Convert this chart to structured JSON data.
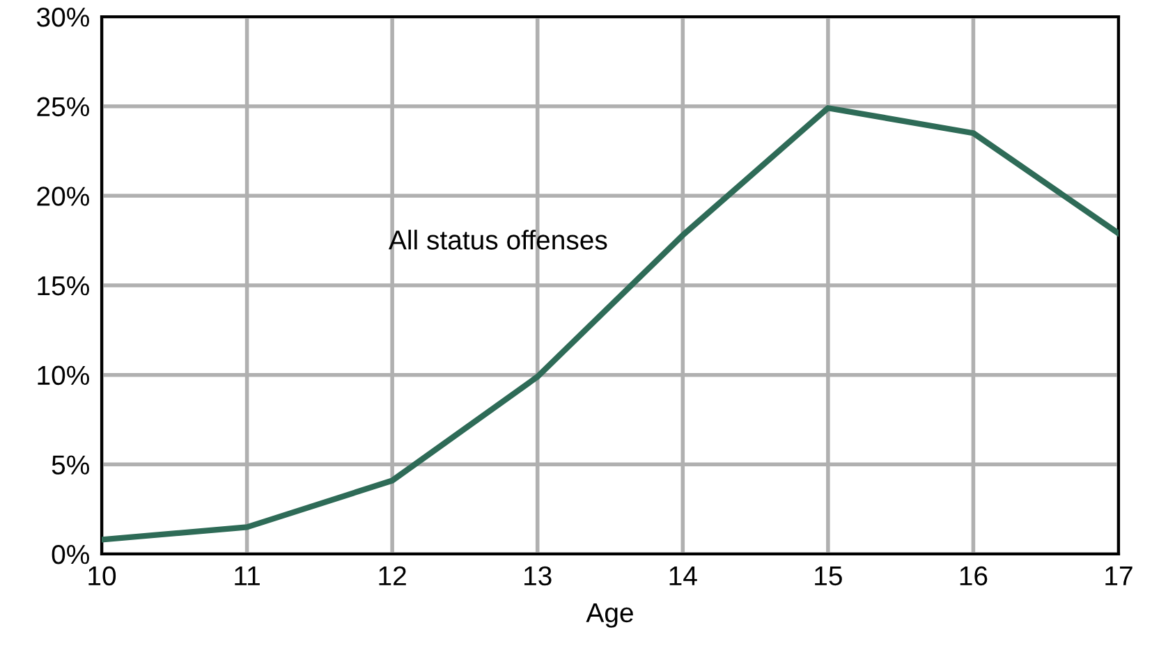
{
  "chart_data": {
    "type": "line",
    "xlabel": "Age",
    "x": [
      10,
      11,
      12,
      13,
      14,
      15,
      16,
      17
    ],
    "series": [
      {
        "name": "All status offenses",
        "color": "#2e6b57",
        "values": [
          0.8,
          1.5,
          4.1,
          9.9,
          17.8,
          24.9,
          23.5,
          17.9
        ]
      }
    ],
    "xlim": [
      10,
      17
    ],
    "xticks": [
      10,
      11,
      12,
      13,
      14,
      15,
      16,
      17
    ],
    "ylim": [
      0,
      30
    ],
    "yticks": [
      {
        "value": 0,
        "label": "0%"
      },
      {
        "value": 5,
        "label": "5%"
      },
      {
        "value": 10,
        "label": "10%"
      },
      {
        "value": 15,
        "label": "15%"
      },
      {
        "value": 20,
        "label": "20%"
      },
      {
        "value": 25,
        "label": "25%"
      },
      {
        "value": 30,
        "label": "30%"
      }
    ],
    "grid": true,
    "marker": "none",
    "line_style": "solid",
    "legend": false
  }
}
